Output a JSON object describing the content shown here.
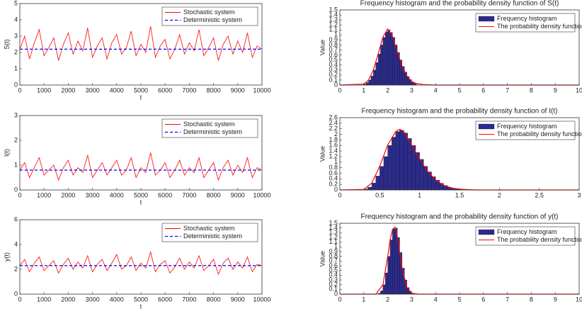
{
  "chart_data": [
    {
      "type": "line",
      "xlabel": "t",
      "ylabel": "S(t)",
      "x": [
        0,
        200,
        400,
        600,
        800,
        1000,
        1200,
        1400,
        1600,
        1800,
        2000,
        2200,
        2400,
        2600,
        2800,
        3000,
        3200,
        3400,
        3600,
        3800,
        4000,
        4200,
        4400,
        4600,
        4800,
        5000,
        5200,
        5400,
        5600,
        5800,
        6000,
        6200,
        6400,
        6600,
        6800,
        7000,
        7200,
        7400,
        7600,
        7800,
        8000,
        8200,
        8400,
        8600,
        8800,
        9000,
        9200,
        9400,
        9600,
        9800,
        10000
      ],
      "series": [
        {
          "name": "Stochastic system",
          "color": "#ff0000",
          "dashed": false,
          "values": [
            2.2,
            3.0,
            1.6,
            2.6,
            3.4,
            1.8,
            2.3,
            2.9,
            1.5,
            2.5,
            3.2,
            1.9,
            2.7,
            2.1,
            3.5,
            1.7,
            2.4,
            2.9,
            1.6,
            2.6,
            3.1,
            1.9,
            2.3,
            3.3,
            1.8,
            2.5,
            2.0,
            3.6,
            1.7,
            2.4,
            2.8,
            1.6,
            2.2,
            3.1,
            1.9,
            2.6,
            2.1,
            3.4,
            1.8,
            2.3,
            2.9,
            1.5,
            2.5,
            3.0,
            1.9,
            2.7,
            2.0,
            3.2,
            1.7,
            2.4,
            2.2
          ]
        },
        {
          "name": "Deterministic system",
          "color": "#0000ff",
          "dashed": true,
          "values": [
            2.2,
            2.2,
            2.2,
            2.2,
            2.2,
            2.2,
            2.2,
            2.2,
            2.2,
            2.2,
            2.2,
            2.2,
            2.2,
            2.2,
            2.2,
            2.2,
            2.2,
            2.2,
            2.2,
            2.2,
            2.2,
            2.2,
            2.2,
            2.2,
            2.2,
            2.2,
            2.2,
            2.2,
            2.2,
            2.2,
            2.2,
            2.2,
            2.2,
            2.2,
            2.2,
            2.2,
            2.2,
            2.2,
            2.2,
            2.2,
            2.2,
            2.2,
            2.2,
            2.2,
            2.2,
            2.2,
            2.2,
            2.2,
            2.2,
            2.2,
            2.2
          ]
        }
      ],
      "xlim": [
        0,
        10000
      ],
      "xticks": [
        0,
        1000,
        2000,
        3000,
        4000,
        5000,
        6000,
        7000,
        8000,
        9000,
        10000
      ],
      "ylim": [
        0,
        5
      ],
      "yticks": [
        0,
        1,
        2,
        3,
        4,
        5
      ],
      "legend": "upper right"
    },
    {
      "type": "histogram",
      "title": "Frequency histogram and the probability density function of S(t)",
      "ylabel": "Value",
      "name": "Frequency histogram",
      "color": "#2b2b8c",
      "bins": [
        1.0,
        1.1,
        1.2,
        1.3,
        1.4,
        1.5,
        1.6,
        1.7,
        1.8,
        1.9,
        2.0,
        2.1,
        2.2,
        2.3,
        2.4,
        2.5,
        2.6,
        2.7,
        2.8,
        2.9,
        3.0,
        3.1,
        3.2
      ],
      "values": [
        0.02,
        0.05,
        0.1,
        0.18,
        0.3,
        0.45,
        0.62,
        0.8,
        0.95,
        1.06,
        1.1,
        1.05,
        0.95,
        0.8,
        0.65,
        0.5,
        0.37,
        0.26,
        0.17,
        0.11,
        0.06,
        0.03
      ],
      "pdf": {
        "name": "The probability density function",
        "color": "#ff0000",
        "x": [
          0,
          1,
          1.2,
          1.4,
          1.6,
          1.8,
          2.0,
          2.2,
          2.4,
          2.6,
          2.8,
          3.0,
          3.2,
          3.5,
          4,
          5,
          10
        ],
        "values": [
          0,
          0.02,
          0.1,
          0.3,
          0.62,
          0.96,
          1.12,
          0.97,
          0.66,
          0.38,
          0.18,
          0.07,
          0.03,
          0.01,
          0,
          0,
          0
        ]
      },
      "xlim": [
        0,
        10
      ],
      "xticks": [
        0,
        1,
        2,
        3,
        4,
        5,
        6,
        7,
        8,
        9,
        10
      ],
      "ylim": [
        0,
        1.5
      ],
      "yticks": [
        0,
        0.1,
        0.2,
        0.3,
        0.4,
        0.5,
        0.6,
        0.7,
        0.8,
        0.9,
        1,
        1.1,
        1.2,
        1.3,
        1.4,
        1.5
      ],
      "legend": "upper right"
    },
    {
      "type": "line",
      "xlabel": "t",
      "ylabel": "I(t)",
      "x": [
        0,
        200,
        400,
        600,
        800,
        1000,
        1200,
        1400,
        1600,
        1800,
        2000,
        2200,
        2400,
        2600,
        2800,
        3000,
        3200,
        3400,
        3600,
        3800,
        4000,
        4200,
        4400,
        4600,
        4800,
        5000,
        5200,
        5400,
        5600,
        5800,
        6000,
        6200,
        6400,
        6600,
        6800,
        7000,
        7200,
        7400,
        7600,
        7800,
        8000,
        8200,
        8400,
        8600,
        8800,
        9000,
        9200,
        9400,
        9600,
        9800,
        10000
      ],
      "series": [
        {
          "name": "Stochastic system",
          "color": "#ff0000",
          "dashed": false,
          "values": [
            0.8,
            1.1,
            0.5,
            0.9,
            1.3,
            0.6,
            0.8,
            1.0,
            0.4,
            0.9,
            1.2,
            0.6,
            0.9,
            0.7,
            1.4,
            0.5,
            0.8,
            1.1,
            0.6,
            0.9,
            1.2,
            0.6,
            0.8,
            1.3,
            0.5,
            0.9,
            0.7,
            1.5,
            0.6,
            0.8,
            1.1,
            0.5,
            0.8,
            1.2,
            0.6,
            0.9,
            0.7,
            1.3,
            0.5,
            0.8,
            1.1,
            0.4,
            0.9,
            1.2,
            0.6,
            1.0,
            0.7,
            1.3,
            0.5,
            0.9,
            0.8
          ]
        },
        {
          "name": "Deterministic system",
          "color": "#0000ff",
          "dashed": true,
          "values": [
            0.8,
            0.8,
            0.8,
            0.8,
            0.8,
            0.8,
            0.8,
            0.8,
            0.8,
            0.8,
            0.8,
            0.8,
            0.8,
            0.8,
            0.8,
            0.8,
            0.8,
            0.8,
            0.8,
            0.8,
            0.8,
            0.8,
            0.8,
            0.8,
            0.8,
            0.8,
            0.8,
            0.8,
            0.8,
            0.8,
            0.8,
            0.8,
            0.8,
            0.8,
            0.8,
            0.8,
            0.8,
            0.8,
            0.8,
            0.8,
            0.8,
            0.8,
            0.8,
            0.8,
            0.8,
            0.8,
            0.8,
            0.8,
            0.8,
            0.8,
            0.8
          ]
        }
      ],
      "xlim": [
        0,
        10000
      ],
      "xticks": [
        0,
        1000,
        2000,
        3000,
        4000,
        5000,
        6000,
        7000,
        8000,
        9000,
        10000
      ],
      "ylim": [
        0,
        3
      ],
      "yticks": [
        0,
        1,
        2,
        3
      ],
      "legend": "upper right"
    },
    {
      "type": "histogram",
      "title": "Frequency histogram and the probability density function of I(t)",
      "ylabel": "Value",
      "name": "Frequency histogram",
      "color": "#2b2b8c",
      "bins": [
        0.3,
        0.35,
        0.4,
        0.45,
        0.5,
        0.55,
        0.6,
        0.65,
        0.7,
        0.75,
        0.8,
        0.85,
        0.9,
        0.95,
        1.0,
        1.05,
        1.1,
        1.15,
        1.2,
        1.25,
        1.3,
        1.35,
        1.4,
        1.45,
        1.5,
        1.55,
        1.6
      ],
      "values": [
        0.03,
        0.1,
        0.25,
        0.5,
        0.85,
        1.2,
        1.6,
        1.9,
        2.1,
        2.15,
        2.05,
        1.85,
        1.6,
        1.35,
        1.1,
        0.85,
        0.65,
        0.48,
        0.35,
        0.24,
        0.16,
        0.1,
        0.06,
        0.04,
        0.02,
        0.01
      ],
      "pdf": {
        "name": "The probability density function",
        "color": "#ff0000",
        "x": [
          0,
          0.3,
          0.4,
          0.5,
          0.6,
          0.7,
          0.75,
          0.8,
          0.9,
          1.0,
          1.1,
          1.2,
          1.3,
          1.4,
          1.5,
          1.7,
          2,
          3
        ],
        "values": [
          0,
          0.02,
          0.25,
          0.85,
          1.62,
          2.1,
          2.18,
          2.1,
          1.62,
          1.1,
          0.67,
          0.36,
          0.17,
          0.07,
          0.03,
          0,
          0,
          0
        ]
      },
      "xlim": [
        0,
        3
      ],
      "xticks": [
        0,
        0.5,
        1,
        1.5,
        2,
        2.5,
        3
      ],
      "ylim": [
        0,
        2.6
      ],
      "yticks": [
        0,
        0.2,
        0.4,
        0.6,
        0.8,
        1,
        1.2,
        1.4,
        1.6,
        1.8,
        2,
        2.2,
        2.4,
        2.6
      ],
      "legend": "upper right"
    },
    {
      "type": "line",
      "xlabel": "t",
      "ylabel": "y(t)",
      "x": [
        0,
        200,
        400,
        600,
        800,
        1000,
        1200,
        1400,
        1600,
        1800,
        2000,
        2200,
        2400,
        2600,
        2800,
        3000,
        3200,
        3400,
        3600,
        3800,
        4000,
        4200,
        4400,
        4600,
        4800,
        5000,
        5200,
        5400,
        5600,
        5800,
        6000,
        6200,
        6400,
        6600,
        6800,
        7000,
        7200,
        7400,
        7600,
        7800,
        8000,
        8200,
        8400,
        8600,
        8800,
        9000,
        9200,
        9400,
        9600,
        9800,
        10000
      ],
      "series": [
        {
          "name": "Stochastic system",
          "color": "#ff0000",
          "dashed": false,
          "values": [
            2.3,
            2.8,
            1.8,
            2.5,
            3.0,
            1.9,
            2.3,
            2.7,
            1.7,
            2.4,
            2.9,
            2.0,
            2.6,
            2.1,
            3.1,
            1.8,
            2.4,
            2.8,
            1.9,
            2.5,
            3.2,
            2.0,
            2.3,
            3.0,
            1.9,
            2.5,
            2.1,
            3.4,
            1.8,
            2.4,
            2.7,
            1.7,
            2.2,
            2.9,
            2.0,
            2.6,
            2.1,
            3.1,
            1.9,
            2.3,
            2.8,
            1.6,
            2.5,
            2.9,
            2.0,
            2.6,
            2.1,
            3.0,
            1.8,
            2.4,
            2.3
          ]
        },
        {
          "name": "Deterministic system",
          "color": "#0000ff",
          "dashed": true,
          "values": [
            2.3,
            2.3,
            2.3,
            2.3,
            2.3,
            2.3,
            2.3,
            2.3,
            2.3,
            2.3,
            2.3,
            2.3,
            2.3,
            2.3,
            2.3,
            2.3,
            2.3,
            2.3,
            2.3,
            2.3,
            2.3,
            2.3,
            2.3,
            2.3,
            2.3,
            2.3,
            2.3,
            2.3,
            2.3,
            2.3,
            2.3,
            2.3,
            2.3,
            2.3,
            2.3,
            2.3,
            2.3,
            2.3,
            2.3,
            2.3,
            2.3,
            2.3,
            2.3,
            2.3,
            2.3,
            2.3,
            2.3,
            2.3,
            2.3,
            2.3,
            2.3
          ]
        }
      ],
      "xlim": [
        0,
        10000
      ],
      "xticks": [
        0,
        1000,
        2000,
        3000,
        4000,
        5000,
        6000,
        7000,
        8000,
        9000,
        10000
      ],
      "ylim": [
        0,
        6
      ],
      "yticks": [
        0,
        2,
        4,
        6
      ],
      "legend": "upper right"
    },
    {
      "type": "histogram",
      "title": "Frequency histogram and the probability density function of y(t)",
      "ylabel": "Value",
      "name": "Frequency histogram",
      "color": "#2b2b8c",
      "bins": [
        1.6,
        1.7,
        1.8,
        1.9,
        2.0,
        2.1,
        2.2,
        2.3,
        2.4,
        2.5,
        2.6,
        2.7,
        2.8,
        2.9,
        3.0,
        3.1
      ],
      "values": [
        0.02,
        0.07,
        0.2,
        0.45,
        0.8,
        1.15,
        1.38,
        1.4,
        1.2,
        0.88,
        0.55,
        0.3,
        0.14,
        0.06,
        0.02
      ],
      "pdf": {
        "name": "The probability density function",
        "color": "#ff0000",
        "x": [
          0,
          1.5,
          1.8,
          2.0,
          2.1,
          2.2,
          2.3,
          2.4,
          2.5,
          2.6,
          2.8,
          3.0,
          3.3,
          4,
          10
        ],
        "values": [
          0,
          0,
          0.2,
          0.8,
          1.15,
          1.37,
          1.42,
          1.22,
          0.88,
          0.55,
          0.14,
          0.02,
          0,
          0,
          0
        ]
      },
      "xlim": [
        0,
        10
      ],
      "xticks": [
        0,
        1,
        2,
        3,
        4,
        5,
        6,
        7,
        8,
        9,
        10
      ],
      "ylim": [
        0,
        1.5
      ],
      "yticks": [
        0,
        0.1,
        0.2,
        0.3,
        0.4,
        0.5,
        0.6,
        0.7,
        0.8,
        0.9,
        1,
        1.1,
        1.2,
        1.3,
        1.4,
        1.5
      ],
      "legend": "upper right"
    }
  ]
}
